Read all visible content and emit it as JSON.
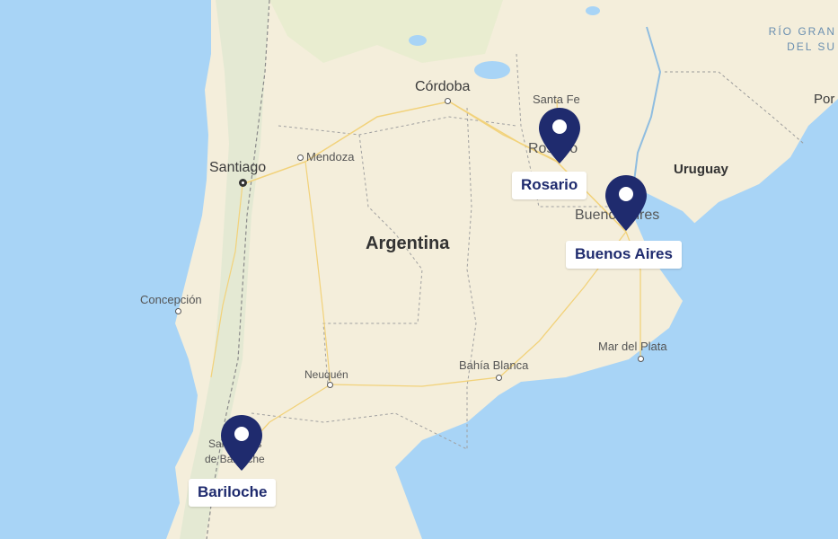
{
  "map": {
    "places": {
      "cordoba": "Córdoba",
      "santa_fe": "Santa Fe",
      "rosario": "Rosario",
      "mendoza": "Mendoza",
      "santiago": "Santiago",
      "buenos_aires": "Buenos Aires",
      "concepcion": "Concepción",
      "neuquen": "Neuquén",
      "bahia_blanca": "Bahía Blanca",
      "mar_del_plata": "Mar del Plata",
      "san_carlos_de_bariloche_line1": "San Carlos",
      "san_carlos_de_bariloche_line2": "de Bariloche"
    },
    "countries": {
      "argentina": "Argentina",
      "uruguay": "Uruguay"
    },
    "water": {
      "rio_line1": "RÍO GRAN",
      "rio_line2": "DEL SU",
      "porto_partial": "Por"
    }
  },
  "markers": [
    {
      "label": "Rosario",
      "icon": "map-pin-icon"
    },
    {
      "label": "Buenos Aires",
      "icon": "map-pin-icon"
    },
    {
      "label": "Bariloche",
      "icon": "map-pin-icon"
    }
  ],
  "colors": {
    "marker": "#1f2b6e",
    "land": "#f4eedb",
    "ocean": "#a8d4f6",
    "andes": "#e6ead6"
  }
}
